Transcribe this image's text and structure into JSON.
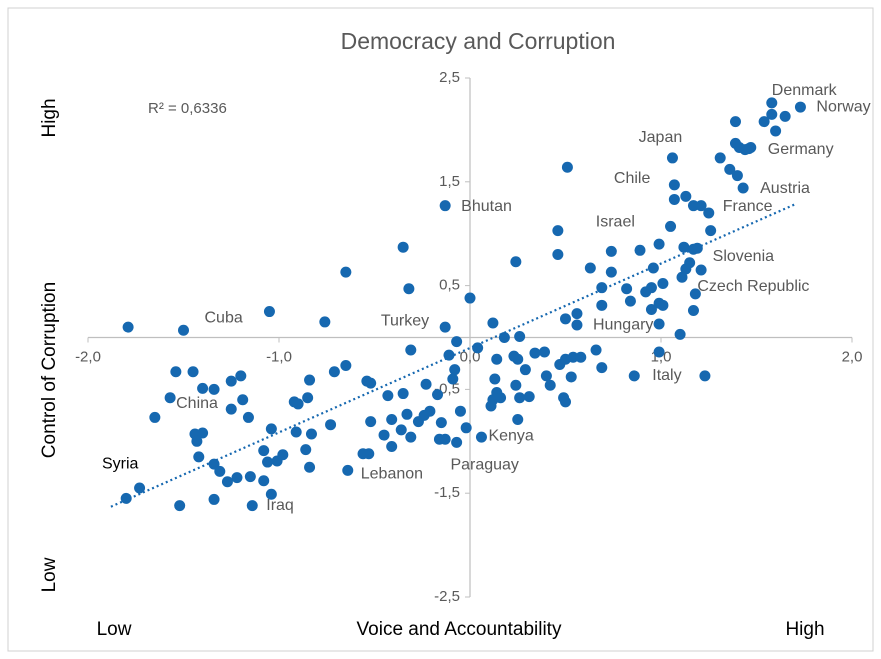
{
  "chart_data": {
    "type": "scatter",
    "title": "Democracy and Corruption",
    "x_label": "Voice and Accountability",
    "y_label": "Control of Corruption",
    "x_low_label": "Low",
    "x_high_label": "High",
    "y_high_label": "High",
    "y_low_label": "Low",
    "annotation": "R² = 0,6336",
    "color": "#1668b0",
    "xlim": [
      -2,
      2
    ],
    "ylim": [
      -2.5,
      2.5
    ],
    "xticks": [
      {
        "value": -2,
        "label": "-2,0"
      },
      {
        "value": -1,
        "label": "-1,0"
      },
      {
        "value": 0,
        "label": "0,0"
      },
      {
        "value": 1,
        "label": "1,0"
      },
      {
        "value": 2,
        "label": "2,0"
      }
    ],
    "yticks": [
      {
        "value": -2.5,
        "label": "-2,5"
      },
      {
        "value": -1.5,
        "label": "-1,5"
      },
      {
        "value": -0.5,
        "label": "-0,5"
      },
      {
        "value": 0.5,
        "label": "0,5"
      },
      {
        "value": 1.5,
        "label": "1,5"
      },
      {
        "value": 2.5,
        "label": "2,5"
      }
    ],
    "trendline": {
      "x": [
        -1.88,
        1.71
      ],
      "y": [
        -1.63,
        1.29
      ]
    },
    "x": [
      1.58,
      1.73,
      1.06,
      1.47,
      1.07,
      1.43,
      1.25,
      -0.13,
      0.74,
      1.15,
      1.18,
      -1.5,
      -0.13,
      0.56,
      0.86,
      -1.57,
      0.06,
      -0.16,
      -0.64,
      -1.8,
      -1.14,
      -1.79,
      -1.05,
      -0.76,
      -0.65,
      -0.35,
      -0.32,
      -0.31,
      0.0,
      -1.54,
      -1.45,
      -1.4,
      -1.34,
      -1.25,
      -1.2,
      -1.65,
      -1.44,
      -1.4,
      -1.43,
      -1.42,
      -1.34,
      -1.31,
      -1.27,
      -1.34,
      -1.52,
      -1.73,
      -1.22,
      -1.15,
      -1.08,
      -1.04,
      -1.06,
      -1.01,
      -1.08,
      -1.04,
      -1.25,
      -1.19,
      -1.16,
      -0.98,
      -0.91,
      -0.92,
      -0.9,
      -0.85,
      -0.84,
      -0.86,
      -0.83,
      -0.84,
      -0.73,
      -0.71,
      -0.65,
      -0.54,
      -0.52,
      -0.52,
      -0.45,
      -0.41,
      -0.43,
      -0.35,
      -0.36,
      -0.33,
      -0.27,
      -0.31,
      -0.41,
      -0.53,
      -0.56,
      -0.24,
      -0.21,
      -0.23,
      -0.17,
      -0.15,
      -0.13,
      -0.07,
      -0.02,
      -0.05,
      -0.09,
      -0.08,
      -0.11,
      -0.07,
      0.04,
      0.14,
      0.12,
      0.13,
      0.14,
      0.12,
      0.11,
      0.16,
      0.18,
      0.26,
      0.25,
      0.23,
      0.24,
      0.25,
      0.26,
      0.29,
      0.34,
      0.39,
      0.4,
      0.42,
      0.31,
      0.47,
      0.49,
      0.5,
      0.5,
      0.53,
      0.54,
      0.58,
      0.5,
      0.56,
      0.24,
      0.46,
      0.46,
      0.51,
      0.66,
      0.69,
      0.63,
      0.69,
      0.69,
      0.74,
      0.82,
      0.84,
      0.89,
      0.92,
      0.95,
      0.96,
      0.95,
      0.99,
      1.01,
      1.01,
      0.99,
      0.99,
      0.99,
      1.1,
      1.05,
      1.12,
      1.13,
      1.11,
      1.17,
      1.19,
      1.17,
      1.21,
      1.23,
      1.26,
      1.07,
      1.13,
      1.17,
      1.21,
      1.31,
      1.36,
      1.4,
      1.39,
      1.39,
      1.41,
      1.44,
      1.46,
      1.54,
      1.58,
      1.6,
      1.65
    ],
    "values": [
      2.26,
      2.22,
      1.73,
      1.83,
      1.47,
      1.44,
      1.2,
      1.27,
      0.83,
      0.72,
      0.42,
      0.07,
      0.1,
      0.12,
      -0.37,
      -0.58,
      -0.96,
      -0.98,
      -1.28,
      -1.55,
      -1.62,
      0.1,
      0.25,
      0.15,
      0.63,
      0.87,
      0.47,
      -0.12,
      0.38,
      -0.33,
      -0.33,
      -0.49,
      -0.5,
      -0.42,
      -0.37,
      -0.77,
      -0.93,
      -0.92,
      -1.0,
      -1.15,
      -1.22,
      -1.29,
      -1.39,
      -1.56,
      -1.62,
      -1.45,
      -1.35,
      -1.34,
      -1.38,
      -1.51,
      -1.2,
      -1.19,
      -1.09,
      -0.88,
      -0.69,
      -0.6,
      -0.77,
      -1.13,
      -0.91,
      -0.62,
      -0.64,
      -0.58,
      -0.41,
      -1.08,
      -0.93,
      -1.25,
      -0.84,
      -0.33,
      -0.27,
      -0.42,
      -0.44,
      -0.81,
      -0.94,
      -0.79,
      -0.56,
      -0.54,
      -0.89,
      -0.74,
      -0.81,
      -0.96,
      -1.05,
      -1.12,
      -1.12,
      -0.75,
      -0.71,
      -0.45,
      -0.55,
      -0.82,
      -0.98,
      -1.01,
      -0.87,
      -0.71,
      -0.4,
      -0.31,
      -0.17,
      -0.04,
      -0.1,
      -0.21,
      0.14,
      -0.4,
      -0.53,
      -0.6,
      -0.66,
      -0.58,
      0.0,
      0.01,
      -0.21,
      -0.18,
      -0.46,
      -0.79,
      -0.58,
      -0.31,
      -0.15,
      -0.14,
      -0.37,
      -0.46,
      -0.57,
      -0.26,
      -0.58,
      -0.62,
      -0.21,
      -0.38,
      -0.19,
      -0.19,
      0.18,
      0.23,
      0.73,
      1.03,
      0.8,
      1.64,
      -0.12,
      -0.29,
      0.67,
      0.31,
      0.48,
      0.63,
      0.47,
      0.35,
      0.84,
      0.44,
      0.48,
      0.67,
      0.27,
      0.33,
      0.31,
      0.52,
      0.9,
      0.13,
      -0.14,
      0.03,
      1.07,
      0.87,
      0.66,
      0.58,
      0.85,
      0.86,
      0.26,
      0.65,
      -0.37,
      1.03,
      1.33,
      1.36,
      1.27,
      1.27,
      1.73,
      1.62,
      1.56,
      2.08,
      1.87,
      1.83,
      1.81,
      1.82,
      2.08,
      2.15,
      1.99,
      2.13
    ],
    "labels": [
      "Denmark",
      "Norway",
      "Japan",
      "Germany",
      "Chile",
      "Austria",
      "France",
      "Bhutan",
      "Israel",
      "Slovenia",
      "Czech Republic",
      "Cuba",
      "Turkey",
      "Hungary",
      "Italy",
      "China",
      "Kenya",
      "Paraguay",
      "Lebanon",
      "Syria",
      "Iraq",
      null,
      null,
      null,
      null,
      null,
      null,
      null,
      null,
      null,
      null,
      null,
      null,
      null,
      null,
      null,
      null,
      null,
      null,
      null,
      null,
      null,
      null,
      null,
      null,
      null,
      null,
      null,
      null,
      null,
      null,
      null,
      null,
      null,
      null,
      null,
      null,
      null,
      null,
      null,
      null,
      null,
      null,
      null,
      null,
      null,
      null,
      null,
      null,
      null,
      null,
      null,
      null,
      null,
      null,
      null,
      null,
      null,
      null,
      null,
      null,
      null,
      null,
      null,
      null,
      null,
      null,
      null,
      null,
      null,
      null,
      null,
      null,
      null,
      null,
      null,
      null,
      null,
      null,
      null,
      null,
      null,
      null,
      null,
      null,
      null,
      null,
      null,
      null,
      null,
      null,
      null,
      null,
      null,
      null,
      null,
      null,
      null,
      null,
      null,
      null,
      null,
      null,
      null,
      null,
      null,
      null,
      null,
      null,
      null,
      null,
      null,
      null,
      null,
      null,
      null,
      null,
      null,
      null,
      null,
      null,
      null,
      null,
      null,
      null,
      null,
      null,
      null,
      null,
      null,
      null,
      null,
      null,
      null,
      null,
      null,
      null,
      null,
      null,
      null,
      null,
      null,
      null,
      null,
      null,
      null,
      null,
      null,
      null,
      null,
      null,
      null,
      null,
      null,
      null,
      null
    ]
  }
}
